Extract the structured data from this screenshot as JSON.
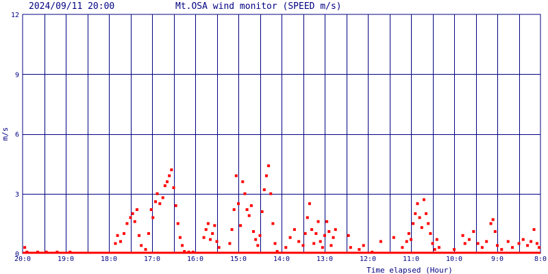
{
  "header": {
    "timestamp": "2024/09/11 20:00",
    "title": "Mt.OSA wind monitor (SPEED m/s)"
  },
  "chart_data": {
    "type": "scatter",
    "title": "Mt.OSA wind monitor (SPEED m/s)",
    "xlabel": "Time elapsed (Hour)",
    "ylabel": "m/s",
    "ylim": [
      0,
      12
    ],
    "xlim": [
      0,
      12
    ],
    "x_direction": "reversed",
    "yticks": [
      {
        "v": 0,
        "label": "0"
      },
      {
        "v": 3,
        "label": "3"
      },
      {
        "v": 6,
        "label": "6"
      },
      {
        "v": 9,
        "label": "9"
      },
      {
        "v": 12,
        "label": "12"
      }
    ],
    "xticks": [
      {
        "v": 0,
        "label": "20:0"
      },
      {
        "v": 1,
        "label": "19:0"
      },
      {
        "v": 2,
        "label": "18:0"
      },
      {
        "v": 3,
        "label": "17:0"
      },
      {
        "v": 4,
        "label": "16:0"
      },
      {
        "v": 5,
        "label": "15:0"
      },
      {
        "v": 6,
        "label": "14:0"
      },
      {
        "v": 7,
        "label": "13:0"
      },
      {
        "v": 8,
        "label": "12:0"
      },
      {
        "v": 9,
        "label": "11:0"
      },
      {
        "v": 10,
        "label": "10:0"
      },
      {
        "v": 11,
        "label": "9:0"
      },
      {
        "v": 12,
        "label": "8:0"
      }
    ],
    "grid": true,
    "grid_divisions_per_hour": 2,
    "colors": {
      "points": "#ff0000",
      "grid": "#000080",
      "text": "#000080"
    },
    "series": [
      {
        "points": [
          [
            0.05,
            0.3
          ],
          [
            0.1,
            0.05
          ],
          [
            0.35,
            0.0
          ],
          [
            0.55,
            0.0
          ],
          [
            0.8,
            0.0
          ],
          [
            1.1,
            0.0
          ],
          [
            2.15,
            0.5
          ],
          [
            2.2,
            0.9
          ],
          [
            2.27,
            0.6
          ],
          [
            2.35,
            1.0
          ],
          [
            2.42,
            1.5
          ],
          [
            2.5,
            1.8
          ],
          [
            2.55,
            2.0
          ],
          [
            2.6,
            1.6
          ],
          [
            2.65,
            2.2
          ],
          [
            2.7,
            0.9
          ],
          [
            2.75,
            0.4
          ],
          [
            2.85,
            0.2
          ],
          [
            2.92,
            1.0
          ],
          [
            2.98,
            2.2
          ],
          [
            3.02,
            1.8
          ],
          [
            3.08,
            2.6
          ],
          [
            3.12,
            3.0
          ],
          [
            3.18,
            2.5
          ],
          [
            3.25,
            2.8
          ],
          [
            3.3,
            3.4
          ],
          [
            3.35,
            3.6
          ],
          [
            3.4,
            3.9
          ],
          [
            3.45,
            4.2
          ],
          [
            3.5,
            3.3
          ],
          [
            3.55,
            2.4
          ],
          [
            3.6,
            1.5
          ],
          [
            3.65,
            0.8
          ],
          [
            3.7,
            0.4
          ],
          [
            3.75,
            0.1
          ],
          [
            3.85,
            0.0
          ],
          [
            3.95,
            0.0
          ],
          [
            4.2,
            0.8
          ],
          [
            4.25,
            1.2
          ],
          [
            4.3,
            1.5
          ],
          [
            4.35,
            0.7
          ],
          [
            4.4,
            1.0
          ],
          [
            4.45,
            1.4
          ],
          [
            4.5,
            0.6
          ],
          [
            4.55,
            0.3
          ],
          [
            4.8,
            0.5
          ],
          [
            4.85,
            1.2
          ],
          [
            4.9,
            2.2
          ],
          [
            4.95,
            3.9
          ],
          [
            5.0,
            2.5
          ],
          [
            5.05,
            1.4
          ],
          [
            5.1,
            3.6
          ],
          [
            5.15,
            3.0
          ],
          [
            5.2,
            2.2
          ],
          [
            5.25,
            1.9
          ],
          [
            5.3,
            2.4
          ],
          [
            5.35,
            1.1
          ],
          [
            5.4,
            0.7
          ],
          [
            5.45,
            0.4
          ],
          [
            5.5,
            0.9
          ],
          [
            5.55,
            2.1
          ],
          [
            5.6,
            3.2
          ],
          [
            5.65,
            3.9
          ],
          [
            5.7,
            4.4
          ],
          [
            5.75,
            3.0
          ],
          [
            5.8,
            1.5
          ],
          [
            5.85,
            0.5
          ],
          [
            5.9,
            0.1
          ],
          [
            6.1,
            0.3
          ],
          [
            6.2,
            0.8
          ],
          [
            6.3,
            1.2
          ],
          [
            6.4,
            0.6
          ],
          [
            6.5,
            0.4
          ],
          [
            6.55,
            1.0
          ],
          [
            6.6,
            1.8
          ],
          [
            6.65,
            2.5
          ],
          [
            6.7,
            1.2
          ],
          [
            6.75,
            0.5
          ],
          [
            6.8,
            1.0
          ],
          [
            6.85,
            1.6
          ],
          [
            6.9,
            0.6
          ],
          [
            6.95,
            0.3
          ],
          [
            7.0,
            0.9
          ],
          [
            7.05,
            1.6
          ],
          [
            7.1,
            1.1
          ],
          [
            7.15,
            0.4
          ],
          [
            7.2,
            0.8
          ],
          [
            7.25,
            1.2
          ],
          [
            7.55,
            0.9
          ],
          [
            7.6,
            0.3
          ],
          [
            7.8,
            0.2
          ],
          [
            7.9,
            0.4
          ],
          [
            8.1,
            0.0
          ],
          [
            8.3,
            0.6
          ],
          [
            8.6,
            0.8
          ],
          [
            8.8,
            0.3
          ],
          [
            8.9,
            0.6
          ],
          [
            8.95,
            1.0
          ],
          [
            9.0,
            0.7
          ],
          [
            9.05,
            1.5
          ],
          [
            9.1,
            2.0
          ],
          [
            9.15,
            2.5
          ],
          [
            9.2,
            1.8
          ],
          [
            9.25,
            1.3
          ],
          [
            9.3,
            2.7
          ],
          [
            9.35,
            2.0
          ],
          [
            9.4,
            1.5
          ],
          [
            9.45,
            1.0
          ],
          [
            9.5,
            0.5
          ],
          [
            9.55,
            0.2
          ],
          [
            9.6,
            0.7
          ],
          [
            9.65,
            0.3
          ],
          [
            10.0,
            0.2
          ],
          [
            10.2,
            0.9
          ],
          [
            10.25,
            0.5
          ],
          [
            10.35,
            0.7
          ],
          [
            10.45,
            1.1
          ],
          [
            10.55,
            0.5
          ],
          [
            10.65,
            0.3
          ],
          [
            10.75,
            0.6
          ],
          [
            10.85,
            1.5
          ],
          [
            10.9,
            1.7
          ],
          [
            10.95,
            1.1
          ],
          [
            11.0,
            0.4
          ],
          [
            11.1,
            0.2
          ],
          [
            11.25,
            0.6
          ],
          [
            11.35,
            0.3
          ],
          [
            11.5,
            0.5
          ],
          [
            11.6,
            0.7
          ],
          [
            11.7,
            0.4
          ],
          [
            11.78,
            0.6
          ],
          [
            11.85,
            1.2
          ],
          [
            11.92,
            0.5
          ],
          [
            11.97,
            0.3
          ]
        ]
      }
    ]
  }
}
